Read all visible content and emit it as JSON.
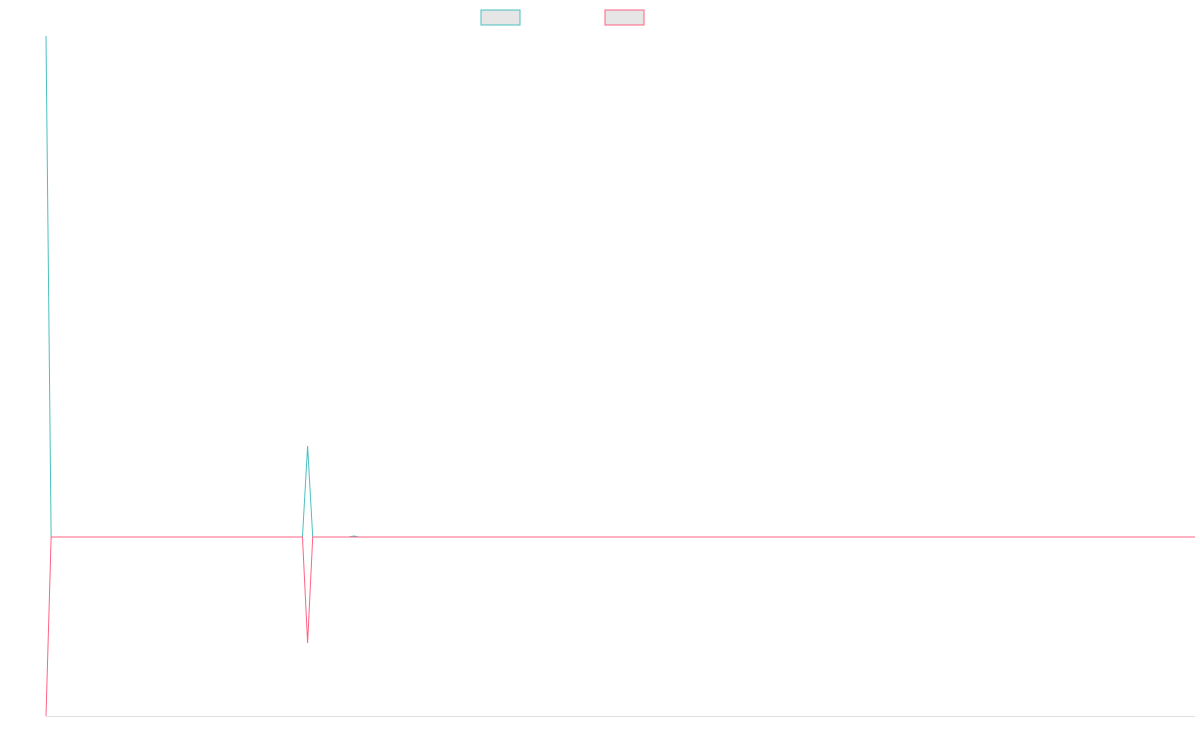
{
  "chart_data": {
    "type": "line",
    "x": [
      0,
      1,
      50,
      51,
      52,
      59,
      60,
      61,
      224
    ],
    "xlim": [
      0,
      224
    ],
    "ylim": [
      -179,
      501
    ],
    "grid": false,
    "series": [
      {
        "color": "#4bc0c0",
        "values": [
          501,
          0,
          0,
          91,
          0,
          0,
          1,
          0,
          0
        ]
      },
      {
        "color": "#ff6384",
        "values": [
          -179,
          0,
          0,
          -106,
          0,
          0,
          0,
          0,
          0
        ]
      }
    ]
  }
}
